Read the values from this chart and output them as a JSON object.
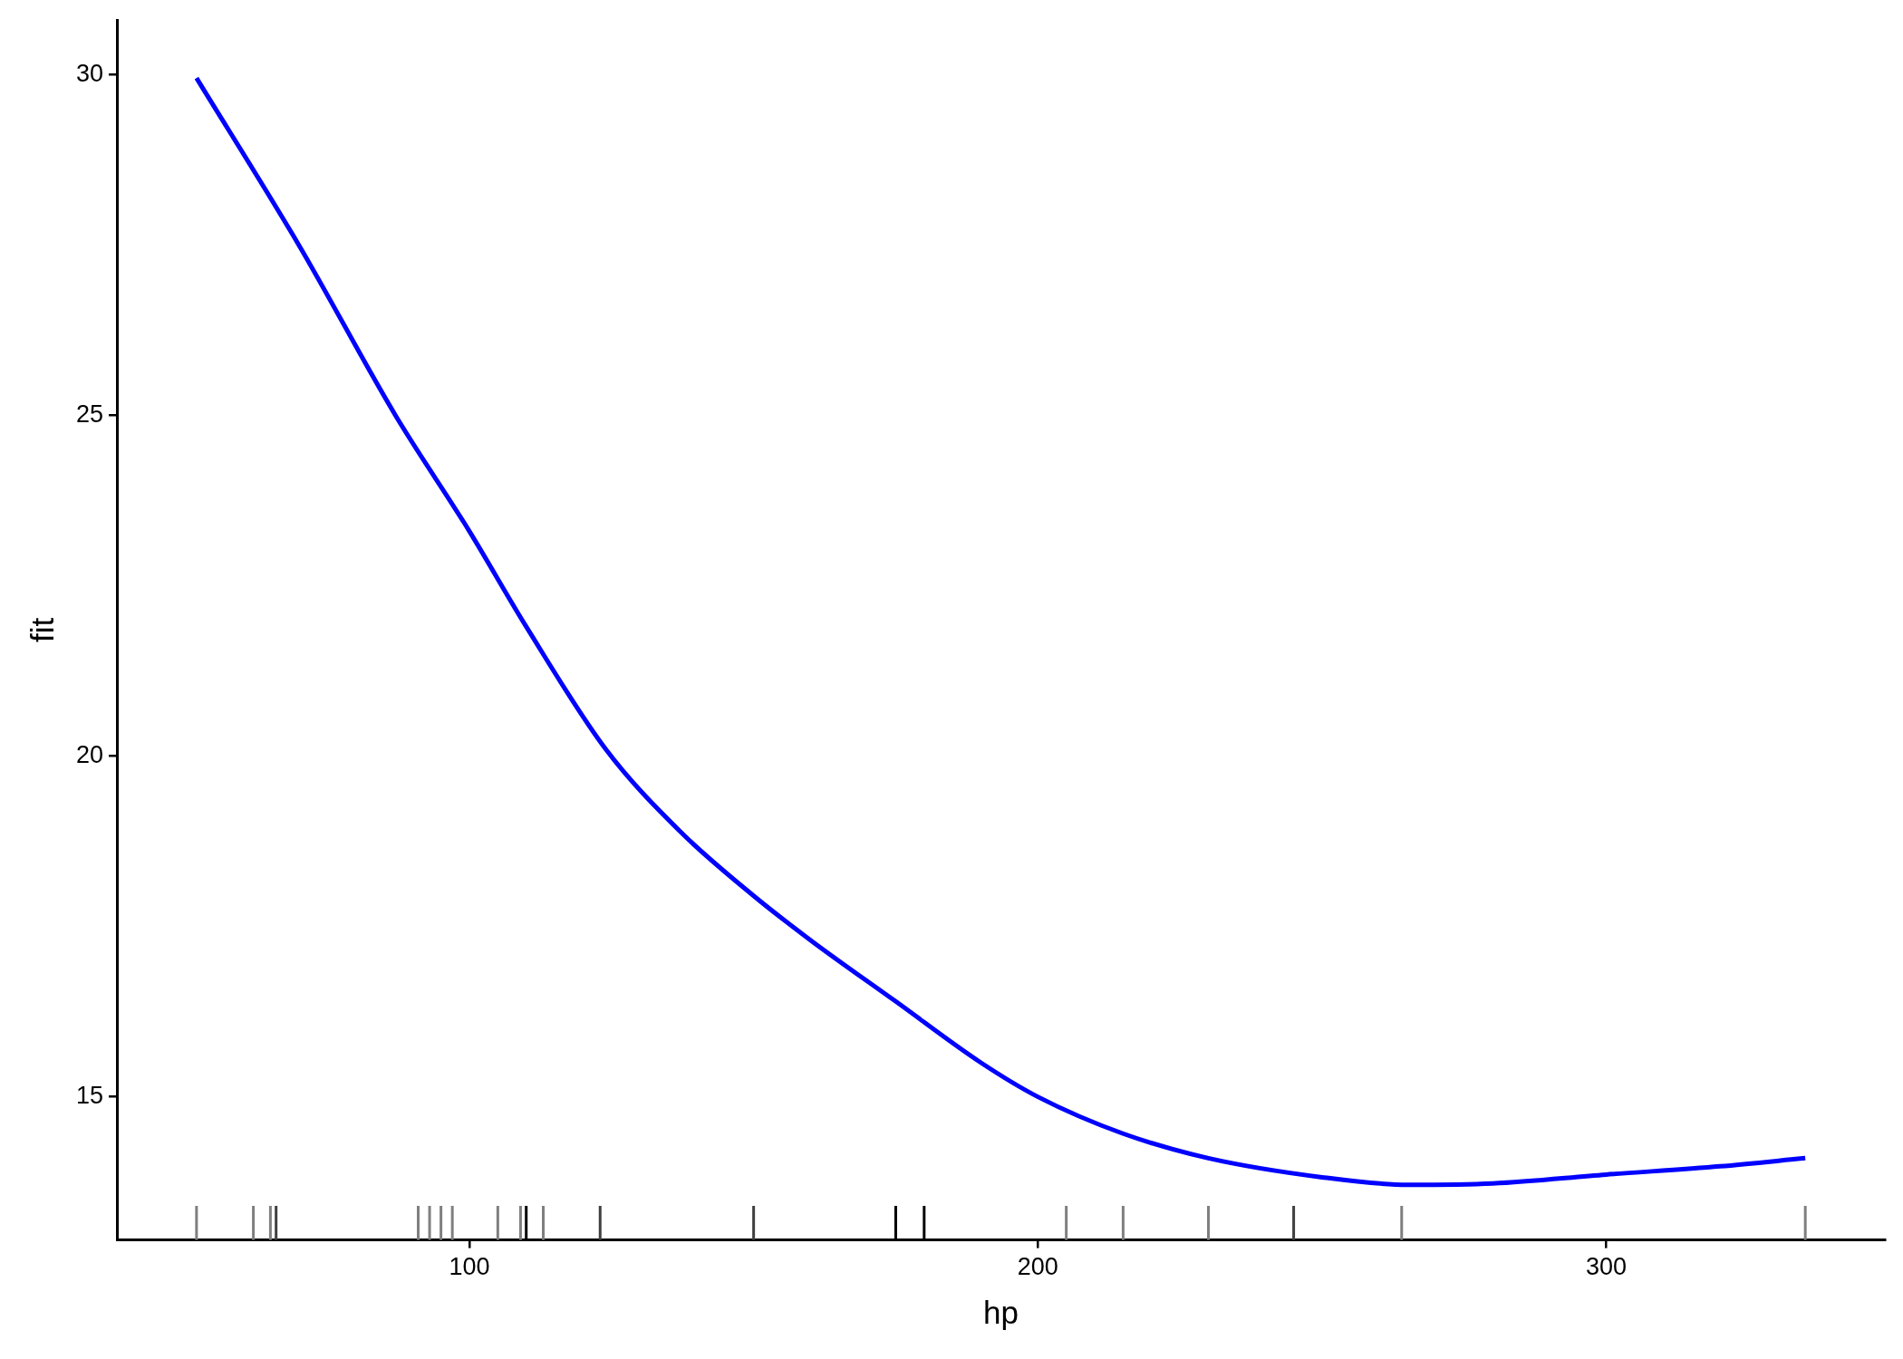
{
  "chart_data": {
    "type": "line",
    "xlabel": "hp",
    "ylabel": "fit",
    "xlim": [
      38,
      349
    ],
    "ylim": [
      12.9,
      30.8
    ],
    "xticks": [
      100,
      200,
      300
    ],
    "yticks": [
      15,
      20,
      25,
      30
    ],
    "grid": false,
    "legend": false,
    "marker": "none",
    "line_style": "solid",
    "series": [
      {
        "color": "#0000ff",
        "x": [
          52,
          70,
          87,
          100,
          110,
          124,
          137,
          150,
          160,
          175,
          190,
          200,
          215,
          230,
          250,
          265,
          280,
          300,
          320,
          335
        ],
        "values": [
          29.95,
          27.5,
          25.0,
          23.3,
          21.9,
          20.1,
          18.9,
          17.95,
          17.3,
          16.4,
          15.5,
          15.0,
          14.46,
          14.1,
          13.82,
          13.71,
          13.73,
          13.86,
          13.98,
          14.1
        ]
      },
      {
        "type": "bar",
        "base": [
          12.9,
          12.9,
          12.9,
          12.9,
          12.9,
          12.9,
          12.9,
          12.9,
          12.9,
          12.9,
          12.9,
          12.9,
          12.9,
          12.9,
          12.9,
          12.9,
          12.9,
          12.9,
          12.9,
          12.9,
          12.9,
          12.9
        ],
        "x": [
          52,
          62,
          65,
          66,
          91,
          93,
          95,
          97,
          105,
          109,
          110,
          113,
          123,
          150,
          175,
          180,
          205,
          215,
          230,
          245,
          264,
          335
        ],
        "values": [
          0.5,
          0.5,
          0.5,
          0.5,
          0.5,
          0.5,
          0.5,
          0.5,
          0.5,
          0.5,
          0.5,
          0.5,
          0.5,
          0.5,
          0.5,
          0.5,
          0.5,
          0.5,
          0.5,
          0.5,
          0.5,
          0.5
        ],
        "colors": [
          "#7f7f7f",
          "#7f7f7f",
          "#7f7f7f",
          "#3f3f3f",
          "#7f7f7f",
          "#7f7f7f",
          "#7f7f7f",
          "#7f7f7f",
          "#7f7f7f",
          "#7f7f7f",
          "#000000",
          "#7f7f7f",
          "#3f3f3f",
          "#3f3f3f",
          "#000000",
          "#000000",
          "#7f7f7f",
          "#7f7f7f",
          "#7f7f7f",
          "#3f3f3f",
          "#7f7f7f",
          "#7f7f7f"
        ]
      }
    ]
  }
}
